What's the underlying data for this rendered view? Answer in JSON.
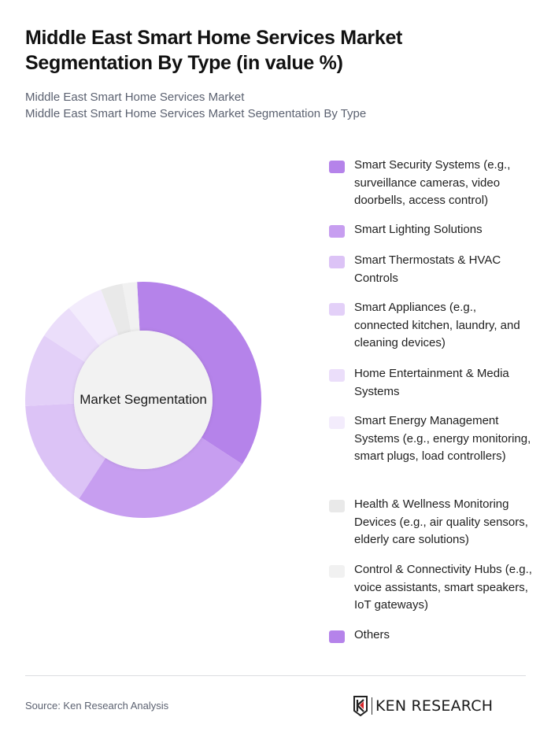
{
  "header": {
    "title": "Middle East Smart Home Services Market Segmentation By Type (in value %)",
    "subtitle_line1": "Middle East Smart Home Services Market",
    "subtitle_line2": "Middle East Smart Home Services Market Segmentation By Type"
  },
  "chart_data": {
    "type": "pie",
    "variant": "donut",
    "title": "Middle East Smart Home Services Market Segmentation By Type (in value %)",
    "center_label": "Market Segmentation",
    "legend_position": "right",
    "categories": [
      "Smart Security Systems (e.g., surveillance cameras, video doorbells, access control)",
      "Smart Lighting Solutions",
      "Smart Thermostats & HVAC Controls",
      "Smart Appliances (e.g., connected kitchen, laundry, and cleaning devices)",
      "Home Entertainment & Media Systems",
      "Smart Energy Management Systems (e.g., energy monitoring, smart plugs, load controllers)",
      "Health & Wellness Monitoring Devices (e.g., air quality sensors, elderly care solutions)",
      "Control & Connectivity Hubs (e.g., voice assistants, smart speakers, IoT gateways)",
      "Others"
    ],
    "values": [
      35,
      25,
      15,
      10,
      5,
      5,
      3,
      2,
      0
    ],
    "colors": [
      "#b583ea",
      "#c79ef0",
      "#dcc3f6",
      "#e3d0f8",
      "#ebdefa",
      "#f3ecfc",
      "#e9e9e9",
      "#f1f1f1",
      "#b583ea"
    ],
    "start_angle_deg": -3
  },
  "legend": {
    "items": [
      {
        "label": "Smart Security Systems (e.g., surveillance cameras, video doorbells, access control)",
        "color": "#b583ea"
      },
      {
        "label": "Smart Lighting Solutions",
        "color": "#c79ef0"
      },
      {
        "label": "Smart Thermostats & HVAC Controls",
        "color": "#dcc3f6"
      },
      {
        "label": "Smart Appliances (e.g., connected kitchen, laundry, and cleaning devices)",
        "color": "#e3d0f8"
      },
      {
        "label": "Home Entertainment & Media Systems",
        "color": "#ebdefa"
      },
      {
        "label": "Smart Energy Management Systems (e.g., energy monitoring, smart plugs, load controllers)",
        "color": "#f3ecfc"
      },
      {
        "label": "Health & Wellness Monitoring Devices (e.g., air quality sensors, elderly care solutions)",
        "color": "#e9e9e9"
      },
      {
        "label": "Control & Connectivity Hubs (e.g., voice assistants, smart speakers, IoT gateways)",
        "color": "#f1f1f1"
      },
      {
        "label": "Others",
        "color": "#b583ea"
      }
    ]
  },
  "footer": {
    "source": "Source: Ken Research Analysis",
    "logo_text": "KEN RESEARCH"
  }
}
